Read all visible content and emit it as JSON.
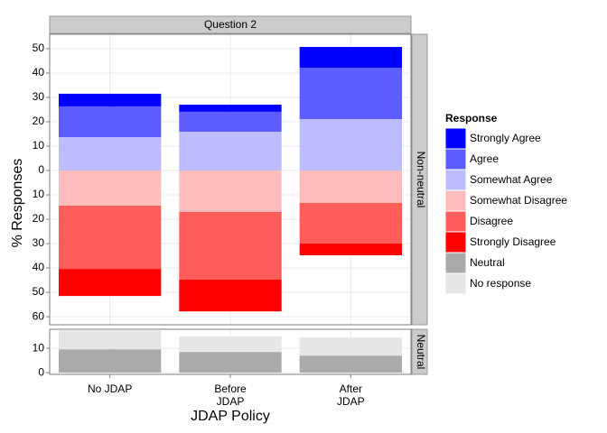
{
  "chart_data": {
    "type": "bar",
    "title": "Question 2",
    "x_label": "JDAP Policy",
    "y_label": "% Responses",
    "legend_title": "Response",
    "categories": [
      "No JDAP",
      "Before JDAP",
      "After JDAP"
    ],
    "panels": [
      {
        "strip": "Non-neutral",
        "diverging": true,
        "ylim": [
          -63.3,
          55.9
        ],
        "yticks": [
          50,
          40,
          30,
          20,
          10,
          0,
          {
            "value": -10,
            "label": "10"
          },
          {
            "value": -20,
            "label": "20"
          },
          {
            "value": -30,
            "label": "30"
          },
          {
            "value": -40,
            "label": "40"
          },
          {
            "value": -50,
            "label": "50"
          },
          {
            "value": -60,
            "label": "60"
          }
        ],
        "series": [
          {
            "name": "Strongly Agree",
            "color": "#0000ff",
            "values": [
              5.2,
              2.9,
              8.5
            ]
          },
          {
            "name": "Agree",
            "color": "#5c5cff",
            "values": [
              12.6,
              8.2,
              21.1
            ]
          },
          {
            "name": "Somewhat Agree",
            "color": "#bcbcff",
            "values": [
              13.7,
              15.9,
              21.1
            ]
          },
          {
            "name": "Somewhat Disagree",
            "color": "#ffbcbc",
            "values": [
              -14.4,
              -17,
              -13.3
            ]
          },
          {
            "name": "Disagree",
            "color": "#ff5c5c",
            "values": [
              -26,
              -27.8,
              -16.7
            ]
          },
          {
            "name": "Strongly Disagree",
            "color": "#ff0000",
            "values": [
              -11.1,
              -13,
              -4.8
            ]
          }
        ]
      },
      {
        "strip": "Neutral",
        "diverging": false,
        "ylim": [
          -0.7,
          17.8
        ],
        "yticks": [
          0,
          10
        ],
        "series": [
          {
            "name": "Neutral",
            "color": "#aaaaaa",
            "values": [
              9.6,
              8.5,
              7
            ]
          },
          {
            "name": "No response",
            "color": "#e6e6e6",
            "values": [
              7.8,
              6.3,
              7.4
            ]
          }
        ]
      }
    ]
  }
}
